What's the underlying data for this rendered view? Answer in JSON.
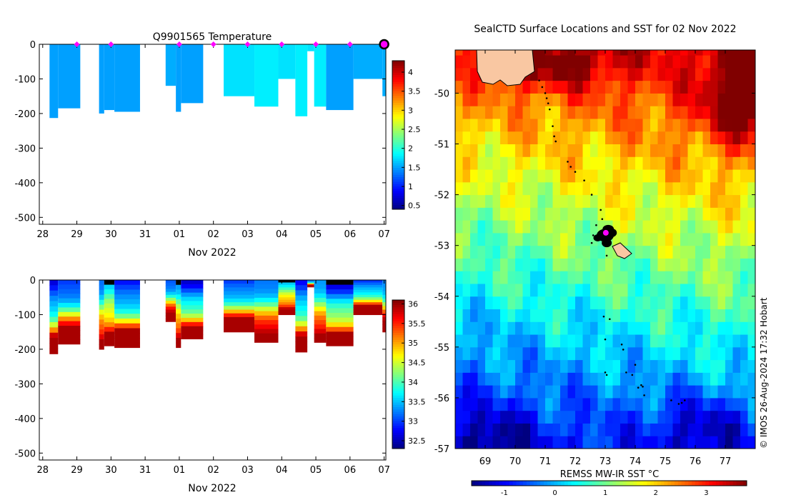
{
  "colors": {
    "marker": "#ff00ff",
    "land": "#f9c7a2",
    "track": "#000000"
  },
  "chart_data": [
    {
      "type": "heatmap",
      "title": "Q9901565  Temperature",
      "xlabel": "Nov 2022",
      "ylabel": "",
      "x_ticks": [
        "28",
        "29",
        "30",
        "31",
        "01",
        "02",
        "03",
        "04",
        "05",
        "06",
        "07"
      ],
      "x_range": [
        27.9,
        38.05
      ],
      "ylim": [
        -520,
        0
      ],
      "y_ticks": [
        "0",
        "-100",
        "-200",
        "-300",
        "-400",
        "-500"
      ],
      "y_tick_values": [
        0,
        -100,
        -200,
        -300,
        -400,
        -500
      ],
      "colorbar": {
        "ticks": [
          "0.5",
          "1",
          "1.5",
          "2",
          "2.5",
          "3",
          "3.5",
          "4"
        ],
        "tick_values": [
          0.5,
          1,
          1.5,
          2,
          2.5,
          3,
          3.5,
          4
        ],
        "range": [
          0.4,
          4.3
        ]
      },
      "profiles": [
        {
          "start": 28.2,
          "end": 28.45,
          "depth": 213
        },
        {
          "start": 28.45,
          "end": 29.1,
          "depth": 185
        },
        {
          "start": 29.65,
          "end": 29.8,
          "depth": 200
        },
        {
          "start": 29.8,
          "end": 30.1,
          "depth": 190
        },
        {
          "start": 30.1,
          "end": 30.85,
          "depth": 195
        },
        {
          "start": 31.6,
          "end": 31.9,
          "depth": 120
        },
        {
          "start": 31.9,
          "end": 32.05,
          "depth": 195
        },
        {
          "start": 32.05,
          "end": 32.7,
          "depth": 170
        },
        {
          "start": 33.3,
          "end": 34.2,
          "depth": 150
        },
        {
          "start": 34.2,
          "end": 34.9,
          "depth": 180
        },
        {
          "start": 34.9,
          "end": 35.4,
          "depth": 100
        },
        {
          "start": 35.4,
          "end": 35.75,
          "depth": 208
        },
        {
          "start": 35.75,
          "end": 35.95,
          "depth": 20
        },
        {
          "start": 35.95,
          "end": 36.3,
          "depth": 180
        },
        {
          "start": 36.3,
          "end": 37.1,
          "depth": 190
        },
        {
          "start": 37.1,
          "end": 37.95,
          "depth": 100
        },
        {
          "start": 37.95,
          "end": 38.05,
          "depth": 150
        }
      ],
      "markers": [
        29,
        30,
        32,
        33,
        34,
        35,
        36,
        37
      ]
    },
    {
      "type": "heatmap",
      "title": "",
      "xlabel": "Nov 2022",
      "ylabel": "",
      "x_ticks": [
        "28",
        "29",
        "30",
        "31",
        "01",
        "02",
        "03",
        "04",
        "05",
        "06",
        "07"
      ],
      "x_range": [
        27.9,
        38.05
      ],
      "ylim": [
        -520,
        0
      ],
      "y_ticks": [
        "0",
        "-100",
        "-200",
        "-300",
        "-400",
        "-500"
      ],
      "y_tick_values": [
        0,
        -100,
        -200,
        -300,
        -400,
        -500
      ],
      "colorbar": {
        "ticks": [
          "32.5",
          "33",
          "33.5",
          "34",
          "34.5",
          "35",
          "35.5",
          "36"
        ],
        "tick_values": [
          32.5,
          33,
          33.5,
          34,
          34.5,
          35,
          35.5,
          36
        ],
        "range": [
          32.3,
          36.1
        ]
      }
    },
    {
      "type": "heatmap",
      "title": "SealCTD Surface Locations and SST for 02 Nov 2022",
      "xlabel": "REMSS MW-IR SST °C",
      "ylabel": "",
      "x_ticks": [
        "69",
        "70",
        "71",
        "72",
        "73",
        "74",
        "75",
        "76",
        "77"
      ],
      "x_tick_values": [
        69,
        70,
        71,
        72,
        73,
        74,
        75,
        76,
        77
      ],
      "x_range": [
        68.0,
        78.0
      ],
      "y_ticks": [
        "-50",
        "-51",
        "-52",
        "-53",
        "-54",
        "-55",
        "-56",
        "-57"
      ],
      "y_tick_values": [
        -50,
        -51,
        -52,
        -53,
        -54,
        -55,
        -56,
        -57
      ],
      "ylim": [
        -57.0,
        -49.15
      ],
      "colorbar": {
        "ticks": [
          "-1",
          "0",
          "1",
          "2",
          "3"
        ],
        "tick_values": [
          -1,
          0,
          1,
          2,
          3
        ],
        "range": [
          -1.65,
          3.8
        ]
      },
      "track": [
        [
          70.8,
          -49.75
        ],
        [
          70.9,
          -49.88
        ],
        [
          71.0,
          -50.0
        ],
        [
          71.05,
          -50.1
        ],
        [
          71.1,
          -50.2
        ],
        [
          71.15,
          -50.32
        ],
        [
          71.25,
          -50.65
        ],
        [
          71.3,
          -50.85
        ],
        [
          71.35,
          -50.95
        ],
        [
          71.75,
          -51.35
        ],
        [
          71.85,
          -51.45
        ],
        [
          72.0,
          -51.55
        ],
        [
          72.3,
          -51.72
        ],
        [
          72.55,
          -52.0
        ],
        [
          72.85,
          -52.3
        ],
        [
          72.9,
          -52.48
        ],
        [
          72.7,
          -52.6
        ],
        [
          72.6,
          -52.8
        ],
        [
          72.55,
          -52.95
        ],
        [
          73.05,
          -53.2
        ],
        [
          72.95,
          -54.4
        ],
        [
          73.15,
          -54.45
        ],
        [
          73.0,
          -54.85
        ],
        [
          73.55,
          -54.95
        ],
        [
          73.6,
          -55.05
        ],
        [
          73.0,
          -55.5
        ],
        [
          73.05,
          -55.55
        ],
        [
          73.7,
          -55.5
        ],
        [
          73.9,
          -55.55
        ],
        [
          74.0,
          -55.35
        ],
        [
          74.1,
          -55.8
        ],
        [
          74.2,
          -55.75
        ],
        [
          74.25,
          -55.78
        ],
        [
          74.3,
          -55.95
        ],
        [
          75.2,
          -56.05
        ],
        [
          75.45,
          -56.12
        ],
        [
          75.55,
          -56.1
        ],
        [
          75.65,
          -56.05
        ]
      ],
      "cluster_center": [
        73.0,
        -52.8
      ],
      "current_position": [
        73.02,
        -52.75
      ]
    }
  ],
  "credit": "© IMOS 26-Aug-2024 17:32 Hobart"
}
